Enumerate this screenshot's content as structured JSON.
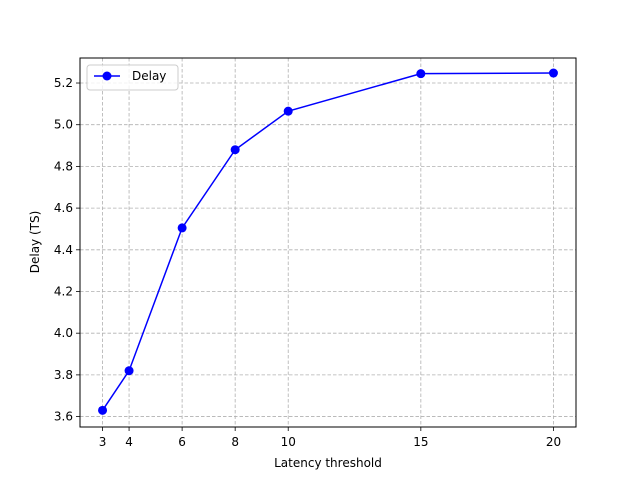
{
  "chart_data": {
    "type": "line",
    "xlabel": "Latency threshold",
    "ylabel": "Delay (TS)",
    "xticks": [
      "3",
      "4",
      "6",
      "8",
      "10",
      "15",
      "20"
    ],
    "yticks": [
      "3.6",
      "3.8",
      "4.0",
      "4.2",
      "4.4",
      "4.6",
      "4.8",
      "5.0",
      "5.2"
    ],
    "xlim": [
      2.15,
      20.85
    ],
    "ylim": [
      3.55,
      5.32
    ],
    "grid": true,
    "legend_position": "top-left",
    "series": [
      {
        "name": "Delay",
        "color": "#0000ff",
        "marker": "circle",
        "x": [
          3,
          4,
          6,
          8,
          10,
          15,
          20
        ],
        "y": [
          3.63,
          3.82,
          4.505,
          4.88,
          5.065,
          5.245,
          5.248
        ]
      }
    ]
  }
}
